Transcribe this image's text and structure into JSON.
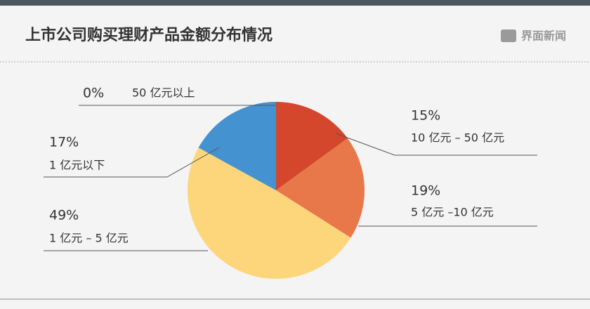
{
  "brand": "界面新闻",
  "chart_data": {
    "type": "pie",
    "title": "上市公司购买理财产品金额分布情况",
    "categories": [
      "50 亿元以上",
      "10 亿元 – 50 亿元",
      "5 亿元 –10 亿元",
      "1 亿元 – 5 亿元",
      "1 亿元以下"
    ],
    "values": [
      0,
      15,
      19,
      49,
      17
    ],
    "value_labels": [
      "0%",
      "15%",
      "19%",
      "49%",
      "17%"
    ],
    "colors": [
      "#6f8aa3",
      "#d4472c",
      "#e8784a",
      "#fdd57a",
      "#4592d1"
    ]
  }
}
